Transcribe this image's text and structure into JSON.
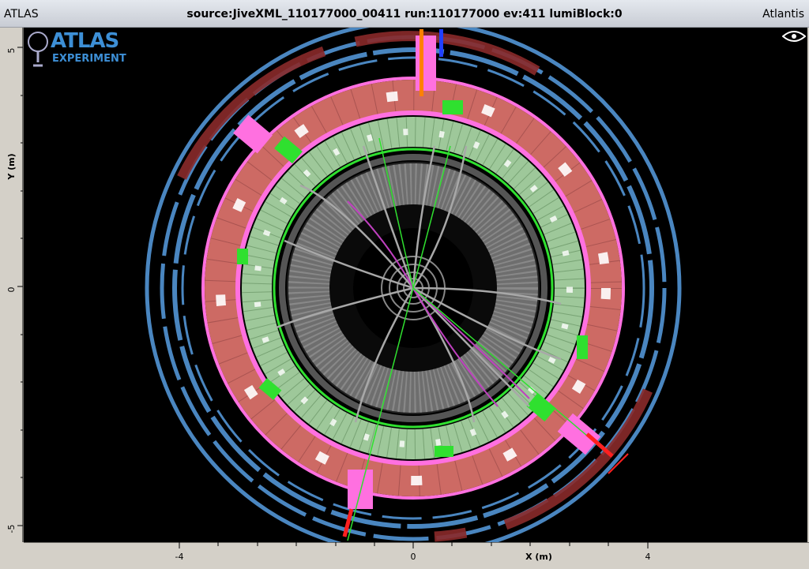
{
  "titlebar": {
    "left": "ATLAS",
    "center": "source:JiveXML_110177000_00411 run:110177000 ev:411 lumiBlock:0",
    "right": "Atlantis"
  },
  "logo": {
    "line1": "ATLAS",
    "line2": "EXPERIMENT"
  },
  "axes": {
    "x_label": "X (m)",
    "y_label": "Y (m)",
    "x_ticks": [
      "-4",
      "0",
      "4"
    ],
    "y_ticks": [
      "5",
      "0",
      "-5"
    ]
  },
  "colors": {
    "background": "#000000",
    "muon": "#4a86c0",
    "hadronic_calorimeter": "#cd6a64",
    "em_calorimeter": "#9ec89a",
    "tracks": "#a8a8a8",
    "selected_tracks": "#c040c0",
    "hits": "#2fe02f",
    "pink_blocks": "#ff70e0"
  },
  "icons": {
    "logo": "atlas-figure-icon",
    "view": "eye-icon"
  }
}
